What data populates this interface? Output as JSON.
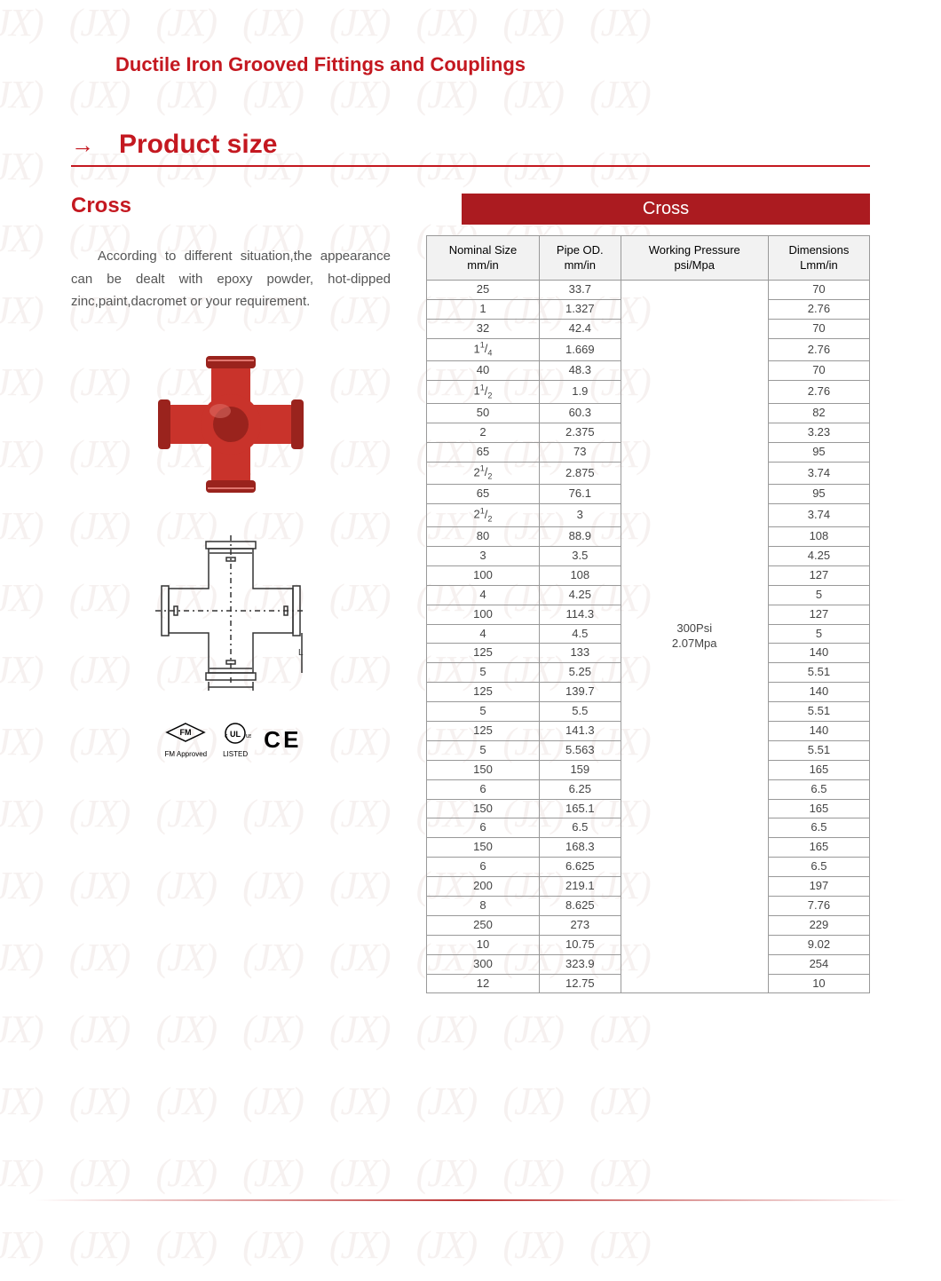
{
  "colors": {
    "accent": "#c41820",
    "banner_bg": "#ab1b20",
    "text": "#444444",
    "border": "#999999",
    "header_bg": "#f2f2f2",
    "watermark": "#7a2e1a"
  },
  "watermark_token": "JX",
  "doc_title": "Ductile Iron Grooved Fittings and Couplings",
  "section": {
    "arrow": "→",
    "title": "Product size"
  },
  "subtitle": "Cross",
  "description": "According to different situation,the appearance can be dealt with epoxy powder, hot-dipped zinc,paint,dacromet or your requirement.",
  "certifications": [
    "FM Approved",
    "c UL us LISTED",
    "CE"
  ],
  "table": {
    "banner": "Cross",
    "columns": [
      {
        "l1": "Nominal Size",
        "l2": "mm/in"
      },
      {
        "l1": "Pipe OD.",
        "l2": "mm/in"
      },
      {
        "l1": "Working Pressure",
        "l2": "psi/Mpa"
      },
      {
        "l1": "Dimensions",
        "l2": "Lmm/in"
      }
    ],
    "pressure": {
      "l1": "300Psi",
      "l2": "2.07Mpa"
    },
    "rows": [
      {
        "ns_mm": "25",
        "ns_in": "1",
        "od_mm": "33.7",
        "od_in": "1.327",
        "d_mm": "70",
        "d_in": "2.76"
      },
      {
        "ns_mm": "32",
        "ns_in": "1¹/₄",
        "od_mm": "42.4",
        "od_in": "1.669",
        "d_mm": "70",
        "d_in": "2.76"
      },
      {
        "ns_mm": "40",
        "ns_in": "1¹/₂",
        "od_mm": "48.3",
        "od_in": "1.9",
        "d_mm": "70",
        "d_in": "2.76"
      },
      {
        "ns_mm": "50",
        "ns_in": "2",
        "od_mm": "60.3",
        "od_in": "2.375",
        "d_mm": "82",
        "d_in": "3.23"
      },
      {
        "ns_mm": "65",
        "ns_in": "2¹/₂",
        "od_mm": "73",
        "od_in": "2.875",
        "d_mm": "95",
        "d_in": "3.74"
      },
      {
        "ns_mm": "65",
        "ns_in": "2¹/₂",
        "od_mm": "76.1",
        "od_in": "3",
        "d_mm": "95",
        "d_in": "3.74"
      },
      {
        "ns_mm": "80",
        "ns_in": "3",
        "od_mm": "88.9",
        "od_in": "3.5",
        "d_mm": "108",
        "d_in": "4.25"
      },
      {
        "ns_mm": "100",
        "ns_in": "4",
        "od_mm": "108",
        "od_in": "4.25",
        "d_mm": "127",
        "d_in": "5"
      },
      {
        "ns_mm": "100",
        "ns_in": "4",
        "od_mm": "114.3",
        "od_in": "4.5",
        "d_mm": "127",
        "d_in": "5"
      },
      {
        "ns_mm": "125",
        "ns_in": "5",
        "od_mm": "133",
        "od_in": "5.25",
        "d_mm": "140",
        "d_in": "5.51"
      },
      {
        "ns_mm": "125",
        "ns_in": "5",
        "od_mm": "139.7",
        "od_in": "5.5",
        "d_mm": "140",
        "d_in": "5.51"
      },
      {
        "ns_mm": "125",
        "ns_in": "5",
        "od_mm": "141.3",
        "od_in": "5.563",
        "d_mm": "140",
        "d_in": "5.51"
      },
      {
        "ns_mm": "150",
        "ns_in": "6",
        "od_mm": "159",
        "od_in": "6.25",
        "d_mm": "165",
        "d_in": "6.5"
      },
      {
        "ns_mm": "150",
        "ns_in": "6",
        "od_mm": "165.1",
        "od_in": "6.5",
        "d_mm": "165",
        "d_in": "6.5"
      },
      {
        "ns_mm": "150",
        "ns_in": "6",
        "od_mm": "168.3",
        "od_in": "6.625",
        "d_mm": "165",
        "d_in": "6.5"
      },
      {
        "ns_mm": "200",
        "ns_in": "8",
        "od_mm": "219.1",
        "od_in": "8.625",
        "d_mm": "197",
        "d_in": "7.76"
      },
      {
        "ns_mm": "250",
        "ns_in": "10",
        "od_mm": "273",
        "od_in": "10.75",
        "d_mm": "229",
        "d_in": "9.02"
      },
      {
        "ns_mm": "300",
        "ns_in": "12",
        "od_mm": "323.9",
        "od_in": "12.75",
        "d_mm": "254",
        "d_in": "10"
      }
    ]
  },
  "product_svg": {
    "fill": "#c9332b",
    "shade": "#9a231d",
    "highlight": "#e0756e"
  },
  "diagram_svg": {
    "stroke": "#333333"
  }
}
